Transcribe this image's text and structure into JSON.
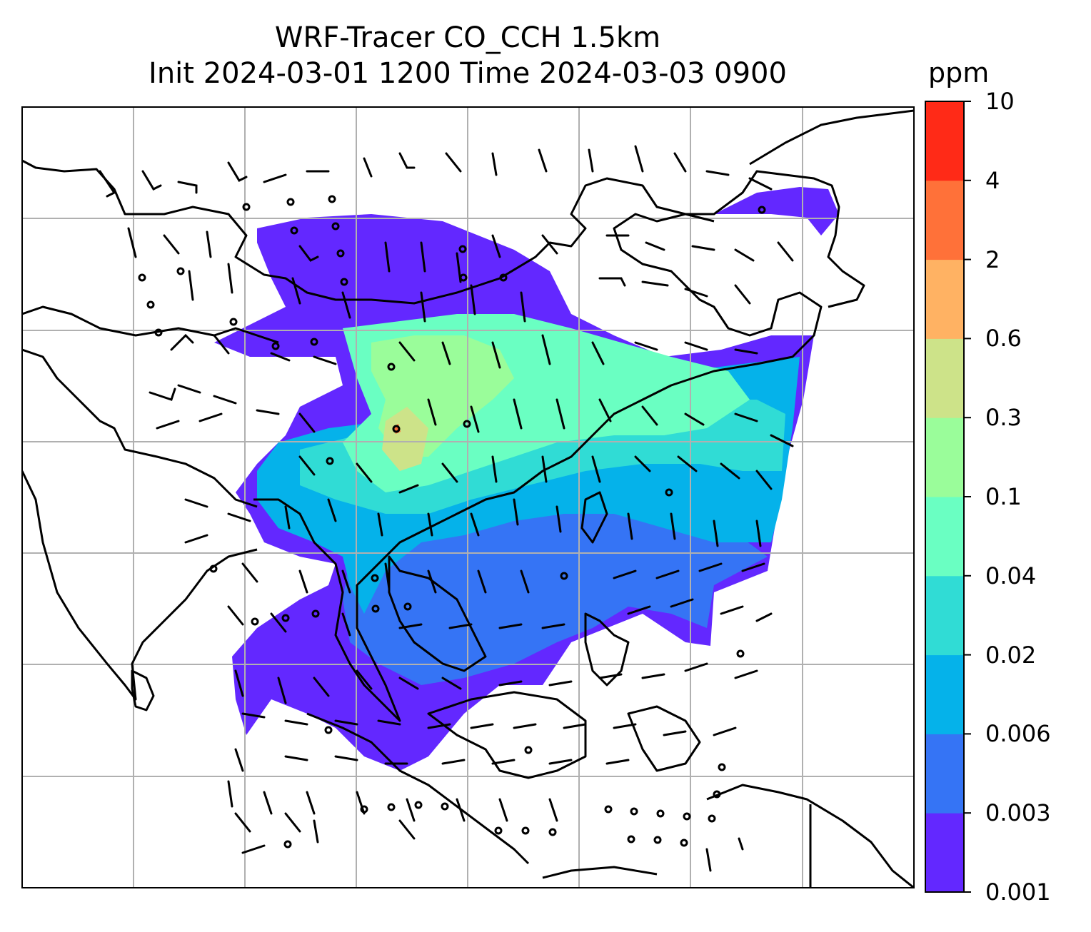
{
  "title": {
    "line1": "WRF-Tracer CO_CCH 1.5km",
    "line2": "Init 2024-03-01 1200 Time 2024-03-03 0900"
  },
  "colorbar": {
    "unit": "ppm",
    "levels": [
      "0.001",
      "0.003",
      "0.006",
      "0.02",
      "0.04",
      "0.1",
      "0.3",
      "0.6",
      "2",
      "4",
      "10"
    ],
    "colors": [
      "#6328ff",
      "#3574f5",
      "#05b2ea",
      "#30dcd5",
      "#6affc2",
      "#9afd9a",
      "#cde389",
      "#ffb263",
      "#ff7139",
      "#ff2a17"
    ]
  },
  "map": {
    "field": "CO_CCH tracer concentration",
    "overlay": [
      "wind-barbs",
      "coastlines",
      "gridlines"
    ],
    "gridlines": true
  },
  "chart_data": {
    "type": "heatmap",
    "title": "WRF-Tracer CO_CCH 1.5km / Init 2024-03-01 1200 Time 2024-03-03 0900",
    "colorbar_label": "ppm",
    "colorbar_levels": [
      0.001,
      0.003,
      0.006,
      0.02,
      0.04,
      0.1,
      0.3,
      0.6,
      2,
      4,
      10
    ]
  }
}
